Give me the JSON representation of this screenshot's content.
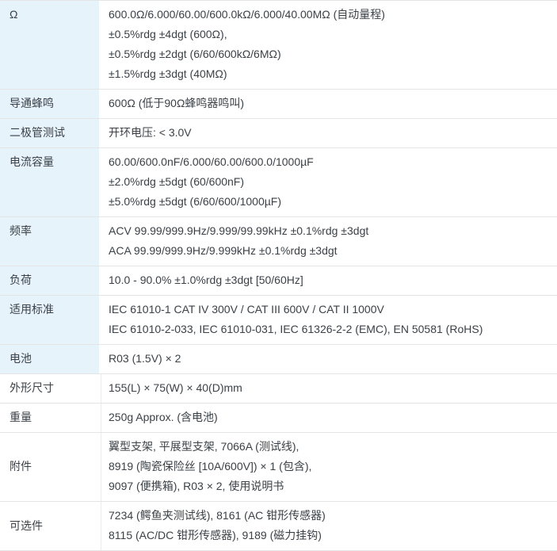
{
  "page": {
    "background_color": "#ffffff",
    "text_color": "#3b4147"
  },
  "spec_table": {
    "label_column_highlight_bg": "#e7f3fb",
    "row_border_color": "#e4e4e4",
    "rows": [
      {
        "label": "Ω",
        "label_highlighted": true,
        "lines": [
          "600.0Ω/6.000/60.00/600.0kΩ/6.000/40.00MΩ (自动量程)",
          "±0.5%rdg ±4dgt (600Ω),",
          "±0.5%rdg ±2dgt (6/60/600kΩ/6MΩ)",
          "±1.5%rdg ±3dgt (40MΩ)"
        ]
      },
      {
        "label": "导通蜂鸣",
        "label_highlighted": true,
        "lines": [
          "600Ω (低于90Ω蜂鸣器鸣叫)"
        ]
      },
      {
        "label": "二极管测试",
        "label_highlighted": true,
        "lines": [
          "开环电压: < 3.0V"
        ]
      },
      {
        "label": "电流容量",
        "label_highlighted": true,
        "lines": [
          "60.00/600.0nF/6.000/60.00/600.0/1000µF",
          "±2.0%rdg ±5dgt (60/600nF)",
          "±5.0%rdg ±5dgt (6/60/600/1000µF)"
        ]
      },
      {
        "label": "频率",
        "label_highlighted": true,
        "lines": [
          "ACV 99.99/999.9Hz/9.999/99.99kHz ±0.1%rdg ±3dgt",
          "ACA 99.99/999.9Hz/9.999kHz ±0.1%rdg ±3dgt"
        ]
      },
      {
        "label": "负荷",
        "label_highlighted": true,
        "lines": [
          "10.0 - 90.0% ±1.0%rdg ±3dgt [50/60Hz]"
        ]
      },
      {
        "label": "适用标准",
        "label_highlighted": true,
        "lines": [
          "IEC 61010-1 CAT IV 300V / CAT III 600V / CAT II 1000V",
          "IEC 61010-2-033, IEC 61010-031, IEC 61326-2-2 (EMC), EN 50581 (RoHS)"
        ]
      },
      {
        "label": "电池",
        "label_highlighted": true,
        "lines": [
          "R03 (1.5V) × 2"
        ]
      },
      {
        "label": "外形尺寸",
        "label_highlighted": false,
        "lines": [
          "155(L) × 75(W) × 40(D)mm"
        ]
      },
      {
        "label": "重量",
        "label_highlighted": false,
        "lines": [
          "250g Approx. (含电池)"
        ]
      },
      {
        "label": "附件",
        "label_highlighted": false,
        "lines": [
          "翼型支架, 平展型支架, 7066A (测试线),",
          "8919 (陶瓷保险丝 [10A/600V]) × 1 (包含),",
          "9097 (便携箱), R03 × 2, 使用说明书"
        ]
      },
      {
        "label": "可选件",
        "label_highlighted": false,
        "lines": [
          "7234 (鳄鱼夹测试线), 8161 (AC 钳形传感器)",
          "8115 (AC/DC 钳形传感器), 9189 (磁力挂钩)"
        ]
      }
    ]
  }
}
